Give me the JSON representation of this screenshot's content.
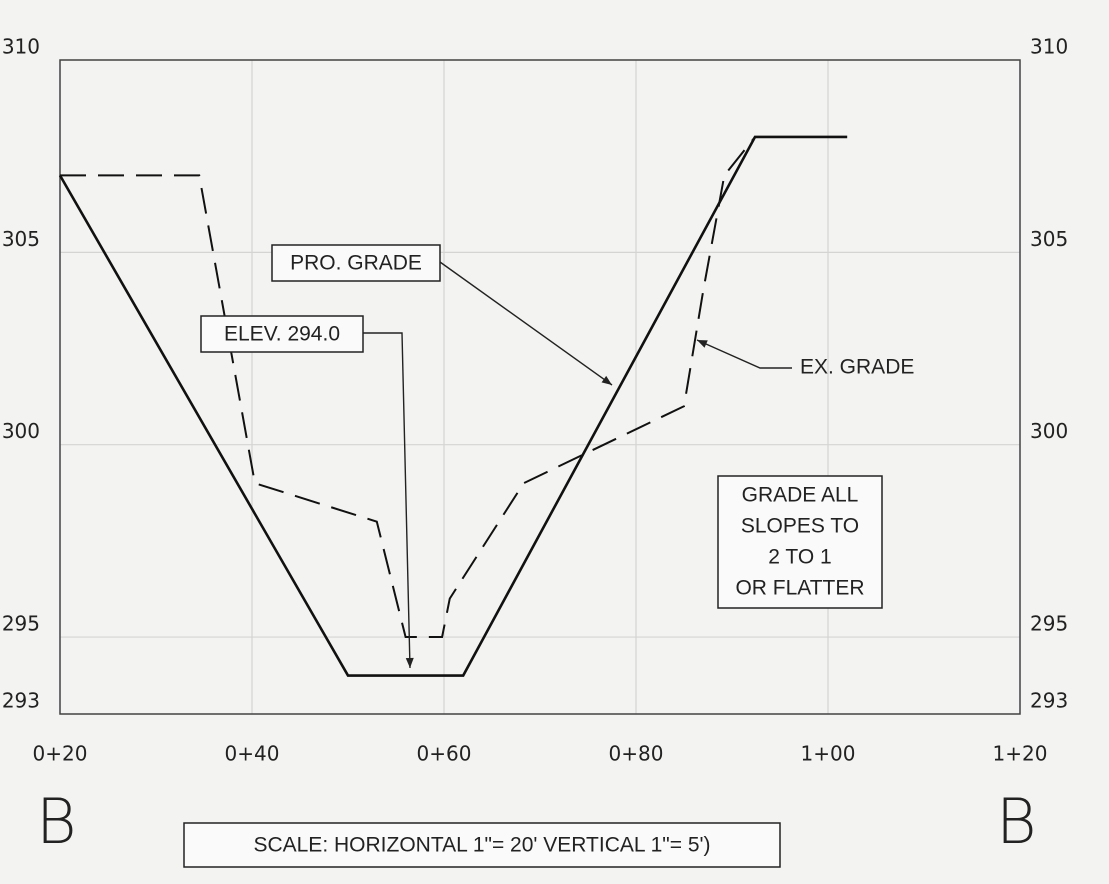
{
  "chart_data": {
    "type": "line",
    "xlim": [
      20,
      120
    ],
    "ylim": [
      293,
      310
    ],
    "xticks": [
      {
        "value": 20,
        "label": "0+20"
      },
      {
        "value": 40,
        "label": "0+40"
      },
      {
        "value": 60,
        "label": "0+60"
      },
      {
        "value": 80,
        "label": "0+80"
      },
      {
        "value": 100,
        "label": "1+00"
      },
      {
        "value": 120,
        "label": "1+20"
      }
    ],
    "yticks": [
      293,
      295,
      300,
      305,
      310
    ],
    "grid": true,
    "series": [
      {
        "name": "PRO. GRADE",
        "color": "#111111",
        "dash": false,
        "x": [
          20,
          50,
          62,
          92.4,
          102
        ],
        "values": [
          307,
          294,
          294,
          308,
          308
        ]
      },
      {
        "name": "EX. GRADE",
        "color": "#111111",
        "dash": true,
        "x": [
          20,
          34.5,
          40.3,
          53,
          56,
          59.8,
          60.6,
          68.3,
          85,
          87,
          89.2,
          92.4
        ],
        "values": [
          307,
          307,
          299,
          298,
          295,
          295,
          296,
          299,
          301,
          304,
          307,
          308
        ]
      }
    ],
    "annotations": {
      "elevation": "ELEV. 294.0",
      "note": [
        "GRADE ALL",
        "SLOPES TO",
        "2 TO 1",
        "OR FLATTER"
      ],
      "section_left": "B",
      "section_right": "B",
      "scale": "SCALE:  HORIZONTAL 1\"= 20'   VERTICAL 1\"= 5')"
    }
  }
}
